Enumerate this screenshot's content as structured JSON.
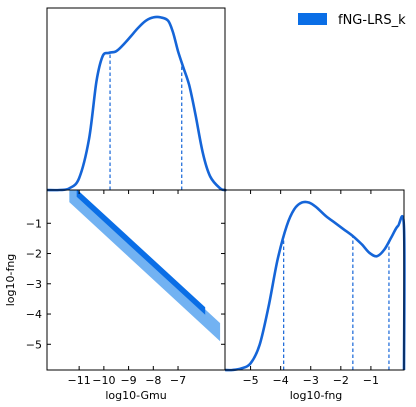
{
  "chart_data": {
    "type": "corner",
    "legend": {
      "label": "fNG-LRS_k",
      "color": "#0a6ee6",
      "placement": "top-right"
    },
    "colors": {
      "line": "#1565d8",
      "fill_outer": "#72b2f2",
      "fill_inner": "#0a6ee6"
    },
    "panels": [
      {
        "id": "hist-log10-Gmu",
        "kind": "marginal_1d",
        "xlim": [
          -12.3,
          -5.1
        ],
        "x": [
          -11.8,
          -11.4,
          -11.0,
          -10.6,
          -10.3,
          -10.05,
          -9.8,
          -9.5,
          -9.2,
          -8.9,
          -8.6,
          -8.3,
          -8.0,
          -7.7,
          -7.4,
          -7.2,
          -7.0,
          -6.8,
          -6.55,
          -6.3,
          -6.0,
          -5.7,
          -5.3,
          -5.1
        ],
        "y": [
          0.0,
          0.01,
          0.07,
          0.3,
          0.64,
          0.79,
          0.81,
          0.82,
          0.86,
          0.91,
          0.96,
          1.0,
          1.02,
          1.02,
          1.0,
          0.93,
          0.82,
          0.73,
          0.62,
          0.45,
          0.22,
          0.08,
          0.01,
          0.0
        ],
        "quantile_lines": [
          -9.75,
          -6.85
        ],
        "xticks": [],
        "yticks": []
      },
      {
        "id": "contour-log10-Gmu-log10-fng",
        "kind": "contour_2d",
        "xlabel": "log10-Gmu",
        "ylabel": "log10-fng",
        "xlim": [
          -12.3,
          -5.1
        ],
        "ylim": [
          -5.85,
          0.1
        ],
        "xticks": [
          -11,
          -10,
          -9,
          -8,
          -7
        ],
        "yticks": [
          -1,
          -2,
          -3,
          -4,
          -5
        ],
        "band_outer": {
          "start": [
            -11.4,
            0.0
          ],
          "end": [
            -5.3,
            -4.6
          ],
          "width_fng": 0.6
        },
        "band_inner": {
          "start": [
            -11.1,
            0.0
          ],
          "end": [
            -5.9,
            -3.9
          ],
          "width_fng": 0.25
        }
      },
      {
        "id": "hist-log10-fng",
        "kind": "marginal_1d",
        "xlabel": "log10-fng",
        "xlim": [
          -5.85,
          0.1
        ],
        "x": [
          -5.6,
          -5.3,
          -5.0,
          -4.7,
          -4.4,
          -4.1,
          -3.8,
          -3.55,
          -3.3,
          -3.05,
          -2.8,
          -2.5,
          -2.2,
          -1.9,
          -1.6,
          -1.3,
          -1.05,
          -0.8,
          -0.55,
          -0.3,
          -0.1,
          0.1
        ],
        "y": [
          0.0,
          0.01,
          0.04,
          0.15,
          0.38,
          0.66,
          0.86,
          0.96,
          1.0,
          1.0,
          0.97,
          0.92,
          0.88,
          0.84,
          0.8,
          0.75,
          0.7,
          0.68,
          0.72,
          0.8,
          0.86,
          0.85
        ],
        "quantile_lines": [
          -3.9,
          -1.6,
          -0.4
        ],
        "xticks": [
          -5,
          -4,
          -3,
          -2,
          -1
        ],
        "yticks": []
      }
    ]
  }
}
